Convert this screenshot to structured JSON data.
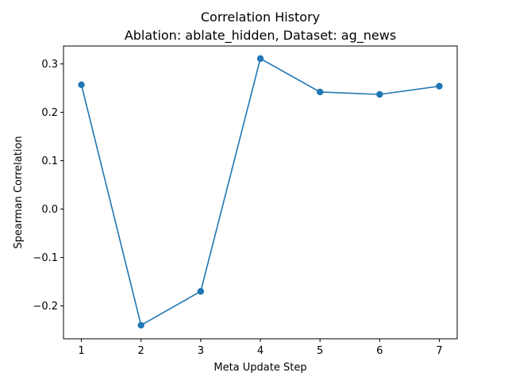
{
  "chart_data": {
    "type": "line",
    "title": "Correlation History",
    "subtitle": "Ablation: ablate_hidden, Dataset: ag_news",
    "xlabel": "Meta Update Step",
    "ylabel": "Spearman Correlation",
    "x": [
      1,
      2,
      3,
      4,
      5,
      6,
      7
    ],
    "series": [
      {
        "values": [
          0.257,
          -0.24,
          -0.17,
          0.311,
          0.242,
          0.237,
          0.254
        ],
        "color": "#1f77b4",
        "marker": "circle"
      }
    ],
    "xlim": [
      0.7,
      7.3
    ],
    "ylim": [
      -0.268,
      0.337
    ],
    "xticks": [
      1,
      2,
      3,
      4,
      5,
      6,
      7
    ],
    "yticks": [
      -0.2,
      -0.1,
      0.0,
      0.1,
      0.2,
      0.3
    ],
    "ytick_labels": [
      "−0.2",
      "−0.1",
      "0.0",
      "0.1",
      "0.2",
      "0.3"
    ],
    "grid": false,
    "legend": "none"
  }
}
